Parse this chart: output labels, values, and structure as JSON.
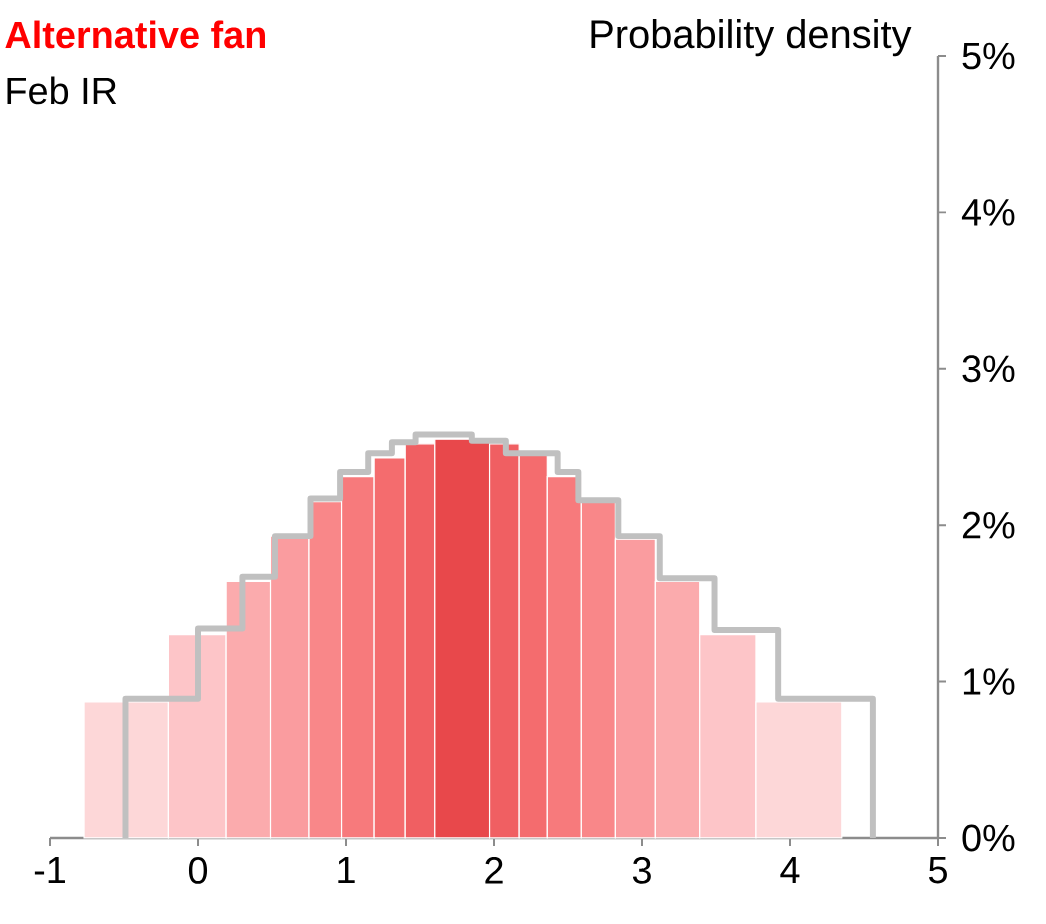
{
  "chart_data": {
    "type": "histogram",
    "title": "Alternative fan",
    "subtitle": "Feb IR",
    "ylabel": "Probability density",
    "bins": [
      -0.77,
      -0.2,
      0.19,
      0.49,
      0.75,
      0.97,
      1.19,
      1.4,
      1.6,
      1.97,
      2.17,
      2.36,
      2.59,
      2.82,
      3.09,
      3.39,
      3.77,
      4.35
    ],
    "values": [
      0.87,
      1.3,
      1.64,
      1.93,
      2.15,
      2.31,
      2.43,
      2.52,
      2.55,
      2.52,
      2.46,
      2.31,
      2.15,
      1.91,
      1.64,
      1.3,
      0.87
    ],
    "colors": [
      "#fdd7d8",
      "#fdc5c8",
      "#fbabad",
      "#fa9c9f",
      "#f98789",
      "#f77a7c",
      "#f46c6e",
      "#f05f62",
      "#e8484b",
      "#f05f62",
      "#f46c6e",
      "#f77a7c",
      "#f98789",
      "#fa9c9f",
      "#fbabad",
      "#fdc5c8",
      "#fdd7d8"
    ],
    "series": [
      {
        "type": "step",
        "color": "#c0c0c0",
        "x": [
          -0.49,
          -0.49,
          0.0,
          0.3,
          0.52,
          0.76,
          0.96,
          1.15,
          1.31,
          1.47,
          1.85,
          2.08,
          2.43,
          2.57,
          2.84,
          3.12,
          3.49,
          3.92,
          4.56
        ],
        "values": [
          0,
          0.89,
          1.34,
          1.67,
          1.93,
          2.17,
          2.34,
          2.46,
          2.53,
          2.58,
          2.54,
          2.46,
          2.34,
          2.16,
          1.93,
          1.66,
          1.33,
          0.89,
          0
        ]
      }
    ],
    "xlim": [
      -1,
      5
    ],
    "xticks": [
      -1,
      0,
      1,
      2,
      3,
      4,
      5
    ],
    "ylim": [
      0,
      5
    ],
    "yticks": [
      {
        "value": 0,
        "label": "0%"
      },
      {
        "value": 1,
        "label": "1%"
      },
      {
        "value": 2,
        "label": "2%"
      },
      {
        "value": 3,
        "label": "3%"
      },
      {
        "value": 4,
        "label": "4%"
      },
      {
        "value": 5,
        "label": "5%"
      }
    ]
  }
}
